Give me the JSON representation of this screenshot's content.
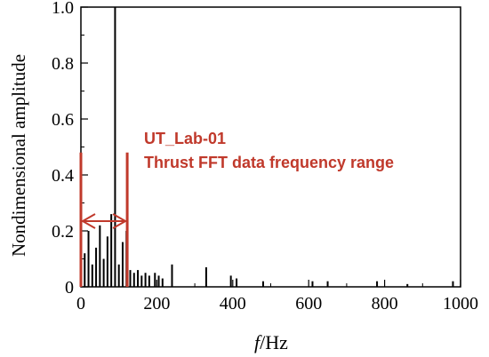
{
  "chart_data": {
    "type": "bar",
    "xlabel_italic": "f",
    "xlabel_unit": "/Hz",
    "ylabel": "Nondimensional amplitude",
    "xlim": [
      0,
      1000
    ],
    "ylim": [
      0,
      1.0
    ],
    "x_ticks": [
      0,
      200,
      400,
      600,
      800,
      1000
    ],
    "y_ticks": [
      0,
      0.2,
      0.4,
      0.6,
      0.8,
      1.0
    ],
    "y_tick_labels": [
      "0",
      "0.2",
      "0.4",
      "0.6",
      "0.8",
      "1.0"
    ],
    "grid": false,
    "x": [
      10,
      20,
      30,
      40,
      50,
      60,
      70,
      80,
      90,
      100,
      110,
      120,
      130,
      140,
      150,
      160,
      170,
      180,
      195,
      205,
      215,
      240,
      330,
      395,
      410,
      480,
      610,
      650,
      780,
      860,
      980
    ],
    "values": [
      0.12,
      0.2,
      0.08,
      0.14,
      0.22,
      0.1,
      0.18,
      0.26,
      1.0,
      0.08,
      0.16,
      0.2,
      0.06,
      0.05,
      0.06,
      0.04,
      0.05,
      0.04,
      0.05,
      0.04,
      0.03,
      0.08,
      0.07,
      0.04,
      0.03,
      0.02,
      0.02,
      0.02,
      0.02,
      0.01,
      0.02
    ],
    "annotation": {
      "line1": "UT_Lab-01",
      "line2": "Thrust FFT data frequency range",
      "range": [
        0,
        122
      ],
      "marker_height": 0.48,
      "color": "#c0392b"
    }
  }
}
